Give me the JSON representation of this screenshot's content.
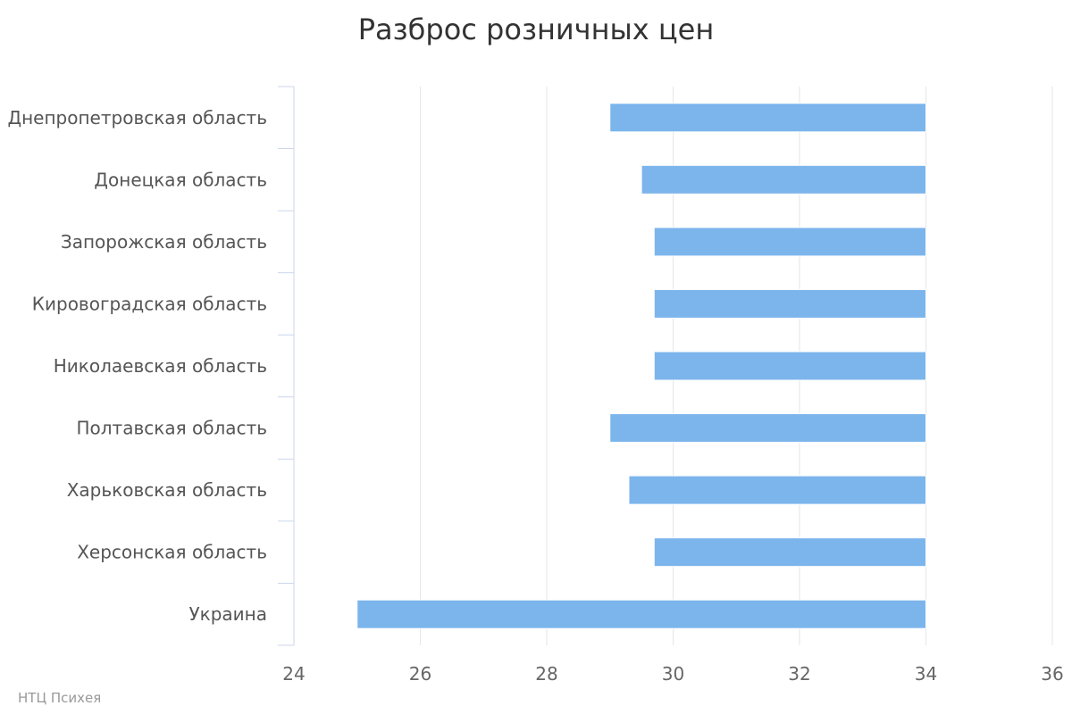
{
  "chart_data": {
    "type": "bar",
    "orientation": "horizontal",
    "chart_subtype": "floating range (columnrange)",
    "title": "Разброс розничных цен",
    "xlabel": "",
    "ylabel": "",
    "categories": [
      "Днепропетровская область",
      "Донецкая область",
      "Запорожская область",
      "Кировоградская область",
      "Николаевская область",
      "Полтавская область",
      "Харьковская область",
      "Херсонская область",
      "Украина"
    ],
    "series": [
      {
        "low": [
          29.0,
          29.5,
          29.7,
          29.7,
          29.7,
          29.0,
          29.3,
          29.7,
          25.0
        ],
        "high": [
          34.0,
          34.0,
          34.0,
          34.0,
          34.0,
          34.0,
          34.0,
          34.0,
          34.0
        ],
        "color": "#7cb5ec"
      }
    ],
    "value_axis": {
      "range": [
        24,
        36
      ],
      "ticks": [
        "24",
        "26",
        "28",
        "30",
        "32",
        "34",
        "36"
      ],
      "grid": true
    },
    "legend": "none"
  },
  "credit": "НТЦ Психея",
  "colors": {
    "bar": "#7cb5ec",
    "grid": "#e6e6e6",
    "axis_line": "#ccd6eb"
  }
}
